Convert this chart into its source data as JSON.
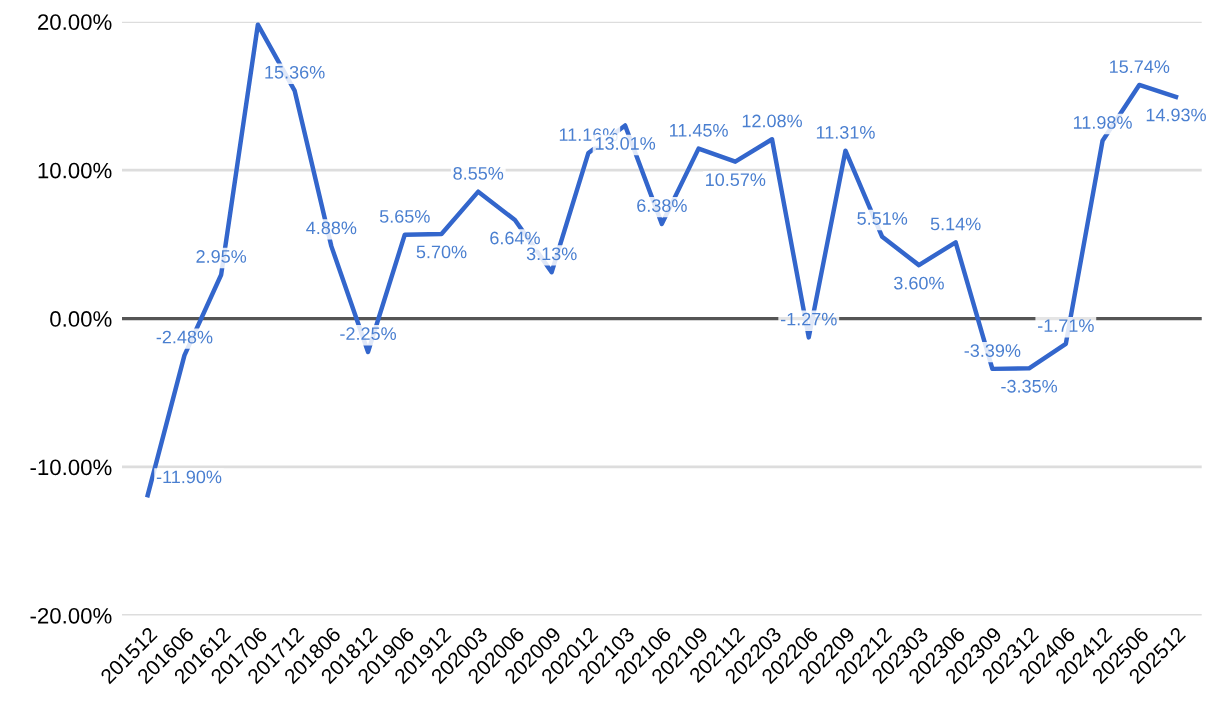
{
  "chart_data": {
    "type": "line",
    "categories": [
      "201512",
      "201606",
      "201612",
      "201706",
      "201712",
      "201806",
      "201812",
      "201906",
      "201912",
      "202003",
      "202006",
      "202009",
      "202012",
      "202103",
      "202106",
      "202109",
      "202112",
      "202203",
      "202206",
      "202209",
      "202212",
      "202303",
      "202306",
      "202309",
      "202312",
      "202406",
      "202412",
      "202506",
      "202512"
    ],
    "series": [
      {
        "color": "#3366cc",
        "values": [
          -11.9,
          -2.48,
          2.95,
          19.8,
          15.36,
          4.88,
          -2.25,
          5.65,
          5.7,
          8.55,
          6.64,
          3.13,
          11.16,
          13.01,
          6.38,
          11.45,
          10.57,
          12.08,
          -1.27,
          11.31,
          5.51,
          3.6,
          5.14,
          -3.39,
          -3.35,
          -1.71,
          11.98,
          15.74,
          14.93
        ],
        "value_labels": [
          "-11.90%",
          "-2.48%",
          "2.95%",
          null,
          "15.36%",
          "4.88%",
          "-2.25%",
          "5.65%",
          "5.70%",
          "8.55%",
          "6.64%",
          "3.13%",
          "11.16%",
          "13.01%",
          "6.38%",
          "11.45%",
          "10.57%",
          "12.08%",
          "-1.27%",
          "11.31%",
          "5.51%",
          "3.60%",
          "5.14%",
          "-3.39%",
          "-3.35%",
          "-1.71%",
          "11.98%",
          "15.74%",
          "14.93%"
        ]
      }
    ],
    "ylim": [
      -20,
      20
    ],
    "yticks": [
      {
        "value": -20,
        "label": "-20.00%"
      },
      {
        "value": -10,
        "label": "-10.00%"
      },
      {
        "value": 0,
        "label": "0.00%"
      },
      {
        "value": 10,
        "label": "10.00%"
      },
      {
        "value": 20,
        "label": "20.00%"
      }
    ],
    "ref_lines": [
      {
        "axis": "y",
        "value": 0,
        "color": "#555555"
      }
    ],
    "grid": "y",
    "legend": false,
    "marker": "none",
    "line_style": "solid"
  }
}
